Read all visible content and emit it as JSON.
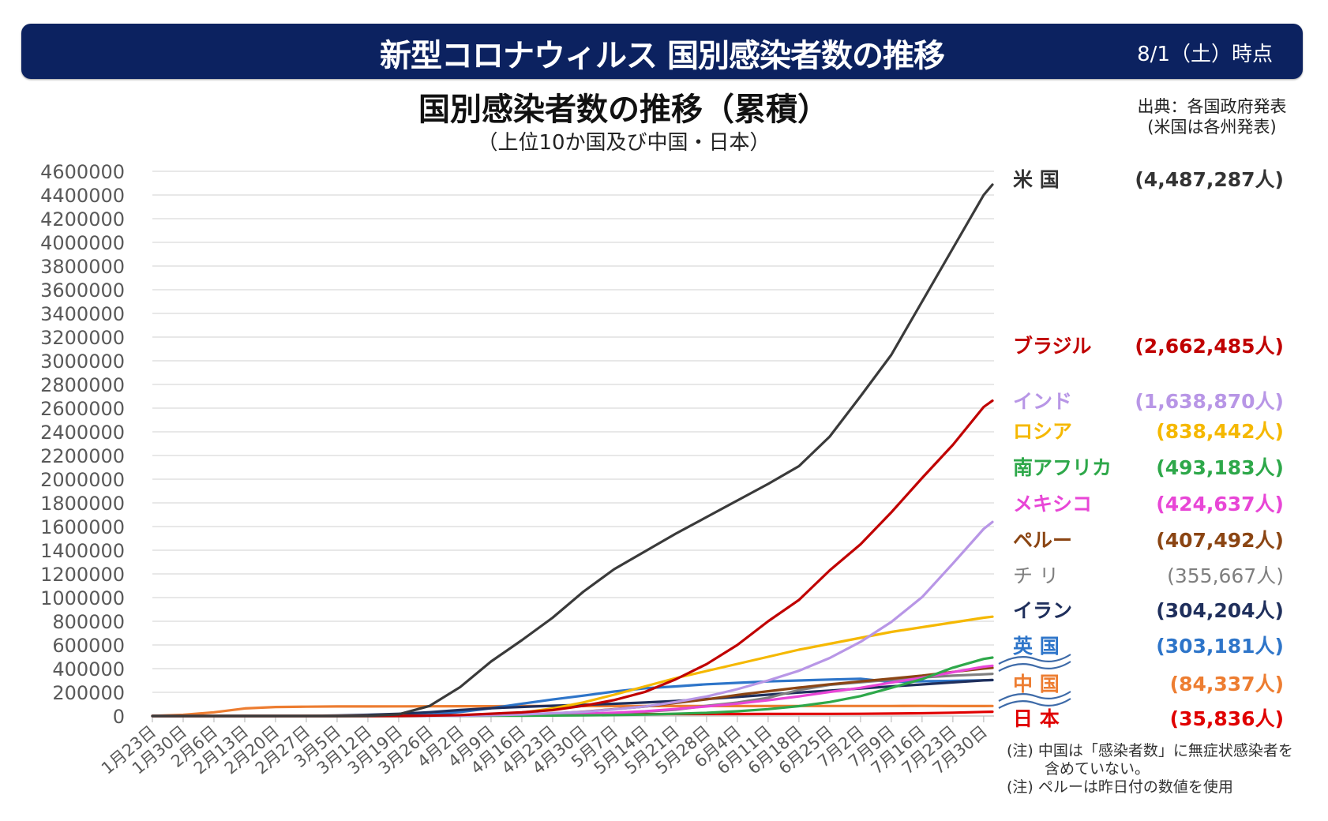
{
  "header": {
    "title": "新型コロナウィルス 国別感染者数の推移",
    "as_of": "8/1（土）時点",
    "bg_color": "#0c2260"
  },
  "source": {
    "line1": "出典：各国政府発表",
    "line2": "(米国は各州発表)"
  },
  "notes": {
    "note1_a": "(注) 中国は「感染者数」に無症状感染者を",
    "note1_b": "含めていない。",
    "note2": "(注) ペルーは昨日付の数値を使用"
  },
  "chart_data": {
    "type": "line",
    "title": "国別感染者数の推移（累積）",
    "subtitle": "（上位10か国及び中国・日本）",
    "xlabel": "",
    "ylabel": "",
    "ylim": [
      0,
      4600000
    ],
    "yticks": [
      0,
      200000,
      400000,
      600000,
      800000,
      1000000,
      1200000,
      1400000,
      1600000,
      1800000,
      2000000,
      2200000,
      2400000,
      2600000,
      2800000,
      3000000,
      3200000,
      3400000,
      3600000,
      3800000,
      4000000,
      4200000,
      4400000,
      4600000
    ],
    "grid": true,
    "legend_position": "right",
    "x_day_range": [
      0,
      191
    ],
    "x_tick_days": [
      0,
      7,
      14,
      21,
      28,
      35,
      42,
      49,
      56,
      63,
      70,
      77,
      84,
      91,
      98,
      105,
      112,
      119,
      126,
      133,
      140,
      147,
      154,
      161,
      168,
      175,
      182,
      189
    ],
    "x_tick_labels": [
      "1月23日",
      "1月30日",
      "2月6日",
      "2月13日",
      "2月20日",
      "2月27日",
      "3月5日",
      "3月12日",
      "3月19日",
      "3月26日",
      "4月2日",
      "4月9日",
      "4月16日",
      "4月23日",
      "4月30日",
      "5月7日",
      "5月14日",
      "5月21日",
      "5月28日",
      "6月4日",
      "6月11日",
      "6月18日",
      "6月25日",
      "7月2日",
      "7月9日",
      "7月16日",
      "7月23日",
      "7月30日"
    ],
    "sample_days": [
      0,
      7,
      14,
      21,
      28,
      35,
      42,
      49,
      56,
      63,
      70,
      77,
      84,
      91,
      98,
      105,
      112,
      119,
      126,
      133,
      140,
      147,
      154,
      161,
      168,
      175,
      182,
      189,
      191
    ],
    "series": [
      {
        "name": "米国",
        "label": "(4,487,287人)",
        "final": 4487287,
        "color": "#3a3a3a",
        "values": [
          0,
          0,
          0,
          0,
          0,
          0,
          200,
          1600,
          14000,
          85000,
          245000,
          460000,
          640000,
          830000,
          1050000,
          1240000,
          1390000,
          1540000,
          1680000,
          1820000,
          1960000,
          2110000,
          2360000,
          2700000,
          3050000,
          3500000,
          3950000,
          4400000,
          4487287
        ]
      },
      {
        "name": "ブラジル",
        "label": "(2,662,485人)",
        "final": 2662485,
        "color": "#c00000",
        "values": [
          0,
          0,
          0,
          0,
          0,
          0,
          0,
          50,
          600,
          3000,
          8000,
          19000,
          31000,
          50000,
          86000,
          135000,
          203000,
          310000,
          438000,
          600000,
          800000,
          980000,
          1230000,
          1450000,
          1720000,
          2010000,
          2290000,
          2610000,
          2662485
        ]
      },
      {
        "name": "インド",
        "label": "(1,638,870人)",
        "final": 1638870,
        "color": "#b896e6",
        "values": [
          0,
          0,
          0,
          0,
          0,
          0,
          30,
          70,
          200,
          700,
          2500,
          6800,
          13000,
          23000,
          35000,
          56000,
          81000,
          118000,
          165000,
          227000,
          300000,
          382000,
          490000,
          626000,
          794000,
          1004000,
          1288000,
          1580000,
          1638870
        ]
      },
      {
        "name": "ロシア",
        "label": "(838,442人)",
        "final": 838442,
        "color": "#f5b800",
        "values": [
          0,
          0,
          0,
          0,
          0,
          0,
          5,
          30,
          200,
          1000,
          4000,
          12000,
          28000,
          63000,
          115000,
          180000,
          250000,
          320000,
          380000,
          440000,
          500000,
          560000,
          610000,
          660000,
          710000,
          750000,
          790000,
          830000,
          838442
        ]
      },
      {
        "name": "南アフリカ",
        "label": "(493,183人)",
        "final": 493183,
        "color": "#2ea84a",
        "values": [
          0,
          0,
          0,
          0,
          0,
          0,
          0,
          20,
          150,
          1000,
          1500,
          2000,
          2800,
          4000,
          5600,
          8200,
          12000,
          19000,
          27000,
          40000,
          58000,
          83000,
          118000,
          168000,
          238000,
          312000,
          408000,
          482000,
          493183
        ]
      },
      {
        "name": "メキシコ",
        "label": "(424,637人)",
        "final": 424637,
        "color": "#e846d6",
        "values": [
          0,
          0,
          0,
          0,
          0,
          0,
          5,
          12,
          160,
          480,
          1500,
          3400,
          6300,
          11000,
          19000,
          28000,
          40000,
          59000,
          81000,
          105000,
          133000,
          166000,
          203000,
          238000,
          282000,
          324000,
          370000,
          416000,
          424637
        ]
      },
      {
        "name": "ペルー",
        "label": "(407,492人)",
        "final": 407492,
        "color": "#8b4513",
        "values": [
          0,
          0,
          0,
          0,
          0,
          0,
          0,
          20,
          230,
          580,
          1400,
          5900,
          14000,
          21000,
          36000,
          58000,
          80000,
          111000,
          141000,
          178000,
          209000,
          240000,
          268000,
          292000,
          316000,
          341000,
          372000,
          401000,
          407492
        ]
      },
      {
        "name": "チリ",
        "label": "(355,667人)",
        "final": 355667,
        "color": "#7f7f7f",
        "values": [
          0,
          0,
          0,
          0,
          0,
          0,
          5,
          33,
          340,
          1600,
          3400,
          5500,
          8800,
          11800,
          16000,
          24000,
          37000,
          53000,
          86000,
          113000,
          154000,
          220000,
          263000,
          285000,
          307000,
          326000,
          341000,
          352000,
          355667
        ]
      },
      {
        "name": "イラン",
        "label": "(304,204人)",
        "final": 304204,
        "color": "#1f2f5c",
        "values": [
          0,
          0,
          0,
          0,
          5,
          388,
          4700,
          10000,
          18400,
          32000,
          50500,
          66000,
          77000,
          87000,
          95000,
          103000,
          114000,
          127000,
          143000,
          161000,
          180000,
          198000,
          215000,
          232000,
          250000,
          267000,
          284000,
          301000,
          304204
        ]
      },
      {
        "name": "英国",
        "label": "(303,181人)",
        "final": 303181,
        "color": "#2e75c9",
        "values": [
          0,
          0,
          2,
          9,
          9,
          20,
          115,
          590,
          3300,
          11700,
          34000,
          66000,
          104000,
          139000,
          172000,
          207000,
          234000,
          250000,
          268000,
          280000,
          292000,
          300000,
          308000,
          314000,
          288000,
          293000,
          297000,
          302000,
          303181
        ]
      },
      {
        "name": "中国",
        "label": "(84,337人)",
        "final": 84337,
        "color": "#ed7d31",
        "values": [
          570,
          9700,
          31200,
          63800,
          75900,
          78800,
          80500,
          80900,
          81200,
          81900,
          82400,
          82800,
          83800,
          83900,
          83950,
          83970,
          84030,
          84060,
          84100,
          84170,
          84220,
          84450,
          84700,
          84830,
          84950,
          85300,
          83700,
          84200,
          84337
        ]
      },
      {
        "name": "日本",
        "label": "(35,836人)",
        "final": 35836,
        "color": "#e00000",
        "values": [
          1,
          11,
          25,
          33,
          94,
          214,
          331,
          620,
          950,
          1500,
          2600,
          5500,
          9200,
          12400,
          14300,
          15500,
          16100,
          16400,
          16700,
          17000,
          17300,
          17700,
          18300,
          18900,
          20400,
          23600,
          28300,
          34400,
          35836
        ]
      }
    ]
  }
}
